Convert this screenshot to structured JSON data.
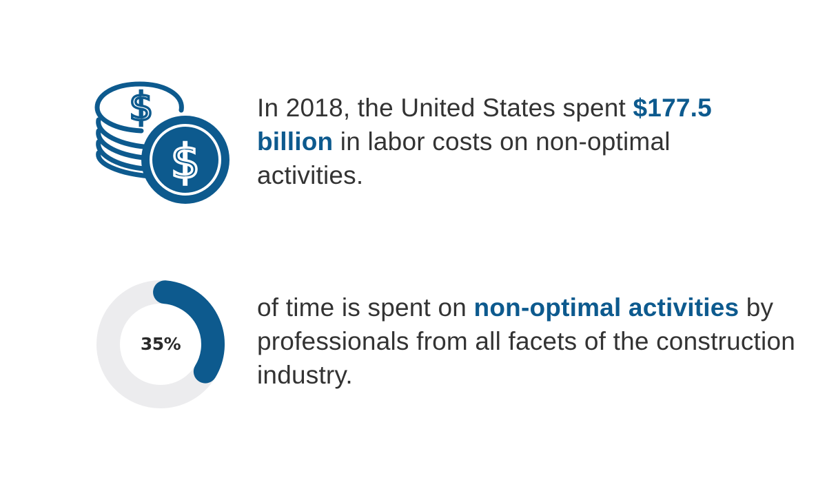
{
  "stats": [
    {
      "icon": "coins-dollar-icon",
      "text_before": "In 2018, the United States spent ",
      "highlight": "$177.5 billion",
      "text_after": " in labor costs on non-optimal activities."
    },
    {
      "icon": "donut-progress",
      "percent_label": "35%",
      "percent_value": 0.35,
      "text_before": "of time is spent on ",
      "highlight": "non-optimal activities",
      "text_after": " by professionals from all facets of the construction industry."
    }
  ],
  "colors": {
    "accent": "#0d5a8e",
    "text": "#333333",
    "track": "#ececee",
    "background": "#ffffff"
  }
}
